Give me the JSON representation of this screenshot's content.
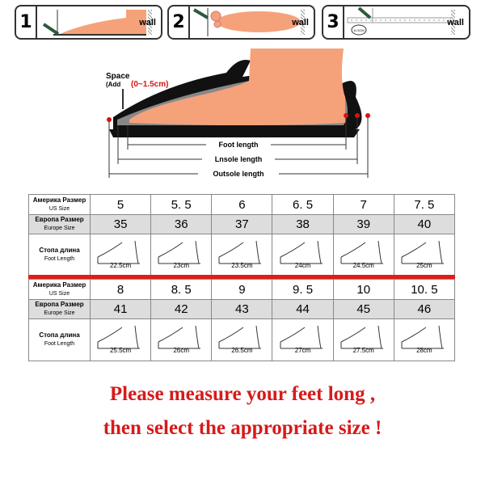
{
  "steps": [
    {
      "number": "1",
      "wall": "wall"
    },
    {
      "number": "2",
      "wall": "wall"
    },
    {
      "number": "3",
      "wall": "wall",
      "badge": "11.5CM"
    }
  ],
  "diagram": {
    "space_label": "Space",
    "add_label": "(Add",
    "add_range": "(0~1.5cm)",
    "foot_length": "Foot length",
    "insole_length": "Lnsole length",
    "outsole_length": "Outsole length"
  },
  "labels": {
    "us_ru": "Америка Размер",
    "us_en": "US Size",
    "eu_ru": "Европа Размер",
    "eu_en": "Europe Size",
    "foot_ru": "Стопа длина",
    "foot_en": "Foot Length"
  },
  "tables": [
    {
      "us": [
        "5",
        "5. 5",
        "6",
        "6. 5",
        "7",
        "7. 5"
      ],
      "eu": [
        "35",
        "36",
        "37",
        "38",
        "39",
        "40"
      ],
      "foot": [
        "22.5cm",
        "23cm",
        "23.5cm",
        "24cm",
        "24.5cm",
        "25cm"
      ]
    },
    {
      "us": [
        "8",
        "8. 5",
        "9",
        "9. 5",
        "10",
        "10. 5"
      ],
      "eu": [
        "41",
        "42",
        "43",
        "44",
        "45",
        "46"
      ],
      "foot": [
        "25.5cm",
        "26cm",
        "26.5cm",
        "27cm",
        "27.5cm",
        "28cm"
      ]
    }
  ],
  "message": {
    "line1": "Please measure your feet long ,",
    "line2": "then select the appropriate size !"
  },
  "colors": {
    "accent_red": "#d71a1a",
    "foot": "#f5a27a"
  }
}
